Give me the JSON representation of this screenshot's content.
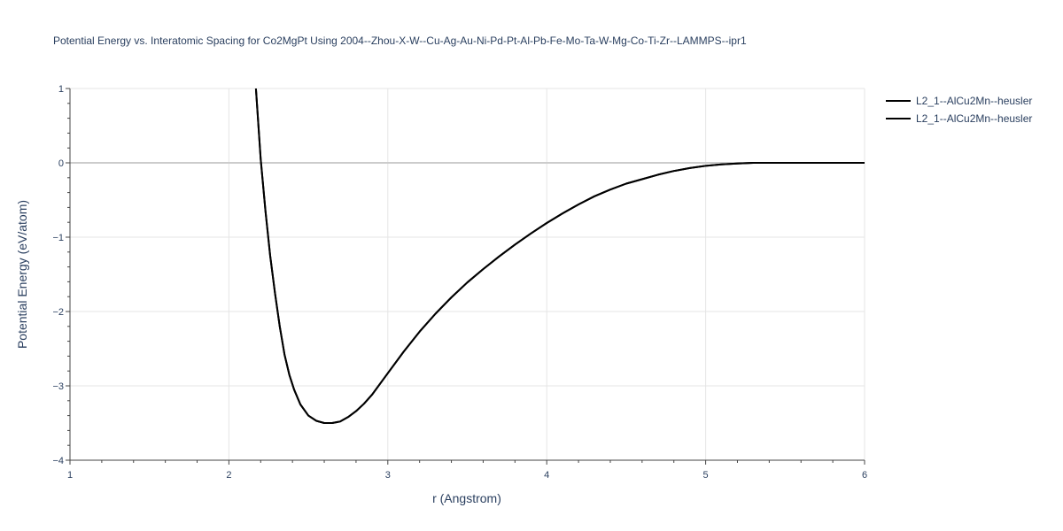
{
  "chart_data": {
    "type": "line",
    "title": "Potential Energy vs. Interatomic Spacing for Co2MgPt Using 2004--Zhou-X-W--Cu-Ag-Au-Ni-Pd-Pt-Al-Pb-Fe-Mo-Ta-W-Mg-Co-Ti-Zr--LAMMPS--ipr1",
    "xlabel": "r (Angstrom)",
    "ylabel": "Potential Energy (eV/atom)",
    "xlim": [
      1,
      6
    ],
    "ylim": [
      -4,
      1
    ],
    "x_ticks": [
      "1",
      "2",
      "3",
      "4",
      "5",
      "6"
    ],
    "y_ticks": [
      "1",
      "0",
      "−1",
      "−2",
      "−3",
      "−4"
    ],
    "grid": true,
    "legend_position": "top-right",
    "colors": {
      "line": "#000000",
      "grid": "#e5e5e5",
      "zeroline": "#cccccc",
      "text": "#2a3f5f"
    },
    "series": [
      {
        "name": "L2_1--AlCu2Mn--heusler",
        "x": [
          2.17,
          2.2,
          2.23,
          2.26,
          2.29,
          2.32,
          2.35,
          2.38,
          2.41,
          2.45,
          2.5,
          2.55,
          2.6,
          2.65,
          2.7,
          2.75,
          2.8,
          2.85,
          2.9,
          3.0,
          3.1,
          3.2,
          3.3,
          3.4,
          3.5,
          3.6,
          3.7,
          3.8,
          3.9,
          4.0,
          4.1,
          4.2,
          4.3,
          4.4,
          4.5,
          4.6,
          4.7,
          4.8,
          4.9,
          5.0,
          5.1,
          5.2,
          5.3,
          5.4,
          5.5,
          5.6,
          5.8,
          6.0
        ],
        "y": [
          1.0,
          0.05,
          -0.65,
          -1.25,
          -1.75,
          -2.2,
          -2.58,
          -2.85,
          -3.05,
          -3.25,
          -3.4,
          -3.47,
          -3.5,
          -3.5,
          -3.48,
          -3.42,
          -3.34,
          -3.24,
          -3.12,
          -2.83,
          -2.54,
          -2.27,
          -2.03,
          -1.81,
          -1.61,
          -1.43,
          -1.26,
          -1.1,
          -0.95,
          -0.81,
          -0.68,
          -0.56,
          -0.45,
          -0.36,
          -0.28,
          -0.22,
          -0.16,
          -0.11,
          -0.07,
          -0.04,
          -0.02,
          -0.01,
          0.0,
          0.0,
          0.0,
          0.0,
          0.0,
          0.0
        ]
      },
      {
        "name": "L2_1--AlCu2Mn--heusler",
        "x": [
          2.17,
          2.2,
          2.23,
          2.26,
          2.29,
          2.32,
          2.35,
          2.38,
          2.41,
          2.45,
          2.5,
          2.55,
          2.6,
          2.65,
          2.7,
          2.75,
          2.8,
          2.85,
          2.9,
          3.0,
          3.1,
          3.2,
          3.3,
          3.4,
          3.5,
          3.6,
          3.7,
          3.8,
          3.9,
          4.0,
          4.1,
          4.2,
          4.3,
          4.4,
          4.5,
          4.6,
          4.7,
          4.8,
          4.9,
          5.0,
          5.1,
          5.2,
          5.3,
          5.4,
          5.5,
          5.6,
          5.8,
          6.0
        ],
        "y": [
          1.0,
          0.05,
          -0.65,
          -1.25,
          -1.75,
          -2.2,
          -2.58,
          -2.85,
          -3.05,
          -3.25,
          -3.4,
          -3.47,
          -3.5,
          -3.5,
          -3.48,
          -3.42,
          -3.34,
          -3.24,
          -3.12,
          -2.83,
          -2.54,
          -2.27,
          -2.03,
          -1.81,
          -1.61,
          -1.43,
          -1.26,
          -1.1,
          -0.95,
          -0.81,
          -0.68,
          -0.56,
          -0.45,
          -0.36,
          -0.28,
          -0.22,
          -0.16,
          -0.11,
          -0.07,
          -0.04,
          -0.02,
          -0.01,
          0.0,
          0.0,
          0.0,
          0.0,
          0.0,
          0.0
        ]
      }
    ]
  }
}
